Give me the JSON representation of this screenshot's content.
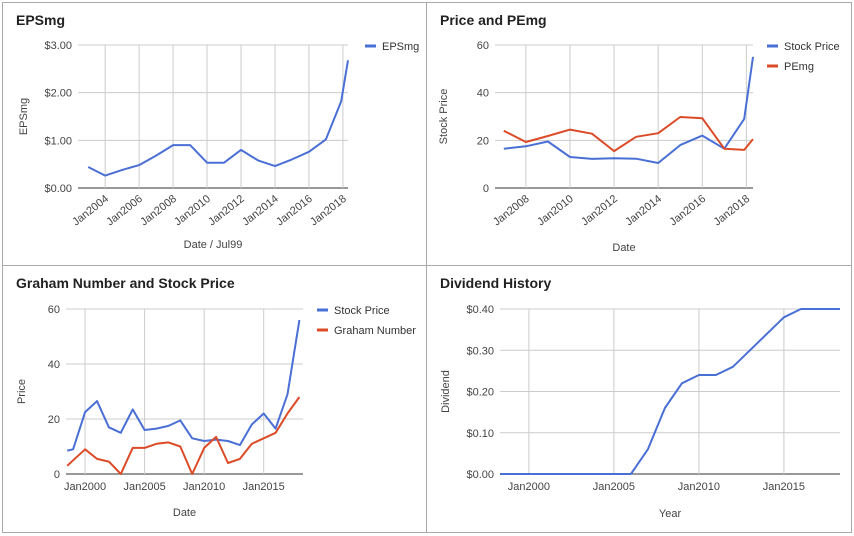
{
  "chart_data": [
    {
      "type": "line",
      "title": "EPSmg",
      "xlabel": "Date / Jul99",
      "ylabel": "EPSmg",
      "x_ticks": [
        "Jan2004",
        "Jan2006",
        "Jan2008",
        "Jan2010",
        "Jan2012",
        "Jan2014",
        "Jan2016",
        "Jan2018"
      ],
      "y_ticks": [
        "$0.00",
        "$1.00",
        "$2.00",
        "$3.00"
      ],
      "xlim": [
        2002.4,
        2018.3
      ],
      "ylim": [
        0,
        3
      ],
      "grid": true,
      "legend_position": "top-right",
      "series": [
        {
          "name": "EPSmg",
          "color": "#4a6fd5",
          "x": [
            2003.0,
            2004.0,
            2005.0,
            2006.0,
            2007.0,
            2008.0,
            2009.0,
            2010.0,
            2011.0,
            2012.0,
            2013.0,
            2014.0,
            2015.0,
            2016.0,
            2017.0,
            2017.9,
            2018.3
          ],
          "y": [
            0.44,
            0.26,
            0.38,
            0.48,
            0.68,
            0.9,
            0.9,
            0.53,
            0.53,
            0.8,
            0.58,
            0.46,
            0.6,
            0.76,
            1.02,
            1.82,
            2.68
          ]
        }
      ]
    },
    {
      "type": "line",
      "title": "Price and PEmg",
      "xlabel": "Date",
      "ylabel": "Stock Price",
      "x_ticks": [
        "Jan2008",
        "Jan2010",
        "Jan2012",
        "Jan2014",
        "Jan2016",
        "Jan2018"
      ],
      "y_ticks": [
        "0",
        "20",
        "40",
        "60"
      ],
      "xlim": [
        2006.6,
        2018.3
      ],
      "ylim": [
        0,
        60
      ],
      "grid": true,
      "legend_position": "top-right",
      "series": [
        {
          "name": "Stock Price",
          "color": "#4a6fd5",
          "x": [
            2007.0,
            2008.0,
            2009.0,
            2010.0,
            2011.0,
            2012.0,
            2013.0,
            2014.0,
            2015.0,
            2016.0,
            2017.0,
            2017.9,
            2018.3
          ],
          "y": [
            16.5,
            17.5,
            19.5,
            13.0,
            12.2,
            12.5,
            12.3,
            10.5,
            18.0,
            22.0,
            16.5,
            29.0,
            55.0
          ]
        },
        {
          "name": "PEmg",
          "color": "#dc4b28",
          "x": [
            2007.0,
            2008.0,
            2009.0,
            2010.0,
            2011.0,
            2012.0,
            2013.0,
            2014.0,
            2015.0,
            2016.0,
            2017.0,
            2017.9,
            2018.3
          ],
          "y": [
            24.0,
            19.3,
            21.8,
            24.5,
            22.8,
            15.5,
            21.5,
            23.0,
            29.8,
            29.3,
            16.5,
            16.0,
            20.5
          ]
        }
      ]
    },
    {
      "type": "line",
      "title": "Graham Number and Stock Price",
      "xlabel": "Date",
      "ylabel": "Price",
      "x_ticks": [
        "Jan2000",
        "Jan2005",
        "Jan2010",
        "Jan2015"
      ],
      "y_ticks": [
        "0",
        "20",
        "40",
        "60"
      ],
      "xlim": [
        1998.4,
        2018.3
      ],
      "ylim": [
        0,
        60
      ],
      "grid": true,
      "legend_position": "top-right",
      "series": [
        {
          "name": "Stock Price",
          "color": "#4a6fd5",
          "x": [
            1998.5,
            1999.0,
            2000.0,
            2001.0,
            2002.0,
            2003.0,
            2004.0,
            2005.0,
            2006.0,
            2007.0,
            2008.0,
            2009.0,
            2010.0,
            2011.0,
            2012.0,
            2013.0,
            2014.0,
            2015.0,
            2016.0,
            2017.0,
            2018.0
          ],
          "y": [
            8.5,
            9.0,
            22.5,
            26.5,
            17.0,
            15.0,
            23.5,
            16.0,
            16.5,
            17.5,
            19.5,
            13.0,
            12.0,
            12.5,
            12.0,
            10.5,
            18.0,
            22.0,
            16.5,
            29.0,
            56.0
          ]
        },
        {
          "name": "Graham Number",
          "color": "#dc4b28",
          "x": [
            1998.5,
            1999.0,
            2000.0,
            2001.0,
            2002.0,
            2003.0,
            2004.0,
            2005.0,
            2006.0,
            2007.0,
            2008.0,
            2009.0,
            2010.0,
            2011.0,
            2012.0,
            2013.0,
            2014.0,
            2015.0,
            2016.0,
            2017.0,
            2018.0
          ],
          "y": [
            3.0,
            5.0,
            9.0,
            5.5,
            4.5,
            0.0,
            9.5,
            9.5,
            11.0,
            11.5,
            10.0,
            0.0,
            9.5,
            13.5,
            4.0,
            5.5,
            11.0,
            13.0,
            15.0,
            22.0,
            28.0
          ]
        }
      ]
    },
    {
      "type": "line",
      "title": "Dividend History",
      "xlabel": "Year",
      "ylabel": "Dividend",
      "x_ticks": [
        "Jan2000",
        "Jan2005",
        "Jan2010",
        "Jan2015"
      ],
      "y_ticks": [
        "$0.00",
        "$0.10",
        "$0.20",
        "$0.30",
        "$0.40"
      ],
      "xlim": [
        1998.3,
        2018.3
      ],
      "ylim": [
        0,
        0.4
      ],
      "grid": true,
      "legend_position": "none",
      "series": [
        {
          "color": "#4a6fd5",
          "x": [
            1998.3,
            2005.0,
            2006.0,
            2007.0,
            2008.0,
            2009.0,
            2010.0,
            2011.0,
            2012.0,
            2013.0,
            2014.0,
            2015.0,
            2016.0,
            2017.0,
            2018.3
          ],
          "y": [
            0.0,
            0.0,
            0.0,
            0.06,
            0.16,
            0.22,
            0.24,
            0.24,
            0.26,
            0.3,
            0.34,
            0.38,
            0.4,
            0.4,
            0.4
          ]
        }
      ]
    }
  ]
}
